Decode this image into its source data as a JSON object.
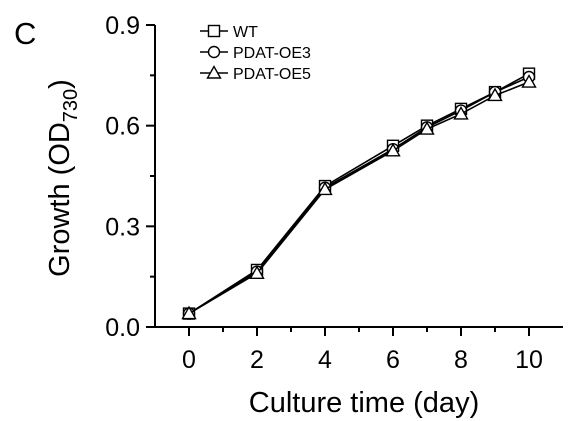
{
  "chart_data": {
    "type": "line",
    "panel_label": "C",
    "title": "",
    "xlabel": "Culture time (day)",
    "ylabel_main": "Growth (OD",
    "ylabel_sub": "730",
    "ylabel_close": ")",
    "x": [
      0,
      2,
      4,
      6,
      7,
      8,
      9,
      10
    ],
    "x_ticks": [
      "0",
      "2",
      "4",
      "6",
      "8",
      "10"
    ],
    "x_tick_values": [
      0,
      2,
      4,
      6,
      8,
      10
    ],
    "y_ticks": [
      "0.0",
      "0.3",
      "0.6",
      "0.9"
    ],
    "y_tick_values": [
      0.0,
      0.3,
      0.6,
      0.9
    ],
    "xlim": [
      -1,
      11
    ],
    "ylim": [
      0,
      0.9
    ],
    "legend_position": "top-left",
    "series": [
      {
        "name": "WT",
        "marker": "square",
        "values": [
          0.04,
          0.17,
          0.42,
          0.54,
          0.6,
          0.65,
          0.7,
          0.755
        ]
      },
      {
        "name": "PDAT-OE3",
        "marker": "circle",
        "values": [
          0.04,
          0.165,
          0.415,
          0.53,
          0.595,
          0.645,
          0.7,
          0.745
        ]
      },
      {
        "name": "PDAT-OE5",
        "marker": "triangle",
        "values": [
          0.04,
          0.16,
          0.41,
          0.525,
          0.59,
          0.635,
          0.69,
          0.73
        ]
      }
    ],
    "line_color": "#000000"
  }
}
